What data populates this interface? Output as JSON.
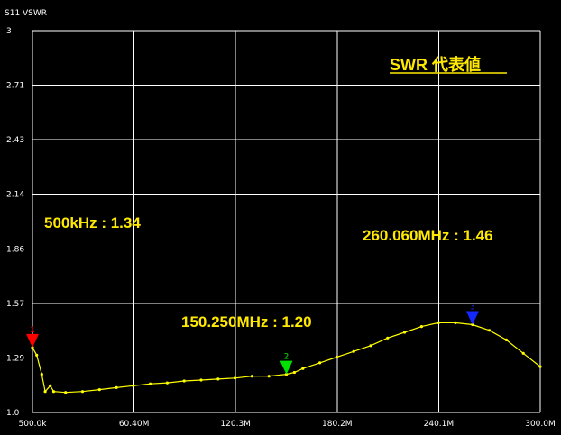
{
  "chart_data": {
    "type": "line",
    "title": "S11 VSWR",
    "heading": "SWR 代表値",
    "xlabel": "",
    "ylabel": "",
    "x_unit": "MHz",
    "xlim": [
      0.5,
      300.0
    ],
    "ylim": [
      1.0,
      3.0
    ],
    "x_tick_labels": [
      "500.0k",
      "60.40M",
      "120.3M",
      "180.2M",
      "240.1M",
      "300.0M"
    ],
    "y_tick_labels": [
      "3",
      "2.71",
      "2.43",
      "2.14",
      "1.86",
      "1.57",
      "1.29",
      "1.0"
    ],
    "grid": true,
    "legend": "none",
    "colors": {
      "background": "#000000",
      "grid": "#ffffff",
      "trace": "#ffff00",
      "annotation": "#ffe900"
    },
    "series": [
      {
        "points": [
          [
            0.5,
            1.34
          ],
          [
            3,
            1.3
          ],
          [
            6,
            1.2
          ],
          [
            8,
            1.11
          ],
          [
            11,
            1.14
          ],
          [
            13,
            1.11
          ],
          [
            20,
            1.105
          ],
          [
            30,
            1.11
          ],
          [
            40,
            1.12
          ],
          [
            50,
            1.13
          ],
          [
            60,
            1.14
          ],
          [
            70,
            1.15
          ],
          [
            80,
            1.155
          ],
          [
            90,
            1.165
          ],
          [
            100,
            1.17
          ],
          [
            110,
            1.175
          ],
          [
            120,
            1.18
          ],
          [
            130,
            1.19
          ],
          [
            140,
            1.19
          ],
          [
            150.25,
            1.2
          ],
          [
            155,
            1.21
          ],
          [
            160,
            1.23
          ],
          [
            170,
            1.26
          ],
          [
            180,
            1.29
          ],
          [
            190,
            1.32
          ],
          [
            200,
            1.35
          ],
          [
            210,
            1.39
          ],
          [
            220,
            1.42
          ],
          [
            230,
            1.45
          ],
          [
            240,
            1.47
          ],
          [
            250,
            1.47
          ],
          [
            260.06,
            1.46
          ],
          [
            270,
            1.43
          ],
          [
            280,
            1.38
          ],
          [
            290,
            1.31
          ],
          [
            300,
            1.24
          ]
        ]
      }
    ],
    "markers": [
      {
        "id": "1",
        "x": 0.5,
        "y": 1.34,
        "color": "#ff0000",
        "label": "500kHz : 1.34"
      },
      {
        "id": "2",
        "x": 150.25,
        "y": 1.2,
        "color": "#00e000",
        "label": "150.250MHz : 1.20"
      },
      {
        "id": "3",
        "x": 260.06,
        "y": 1.46,
        "color": "#1428ff",
        "label": "260.060MHz : 1.46"
      }
    ]
  }
}
